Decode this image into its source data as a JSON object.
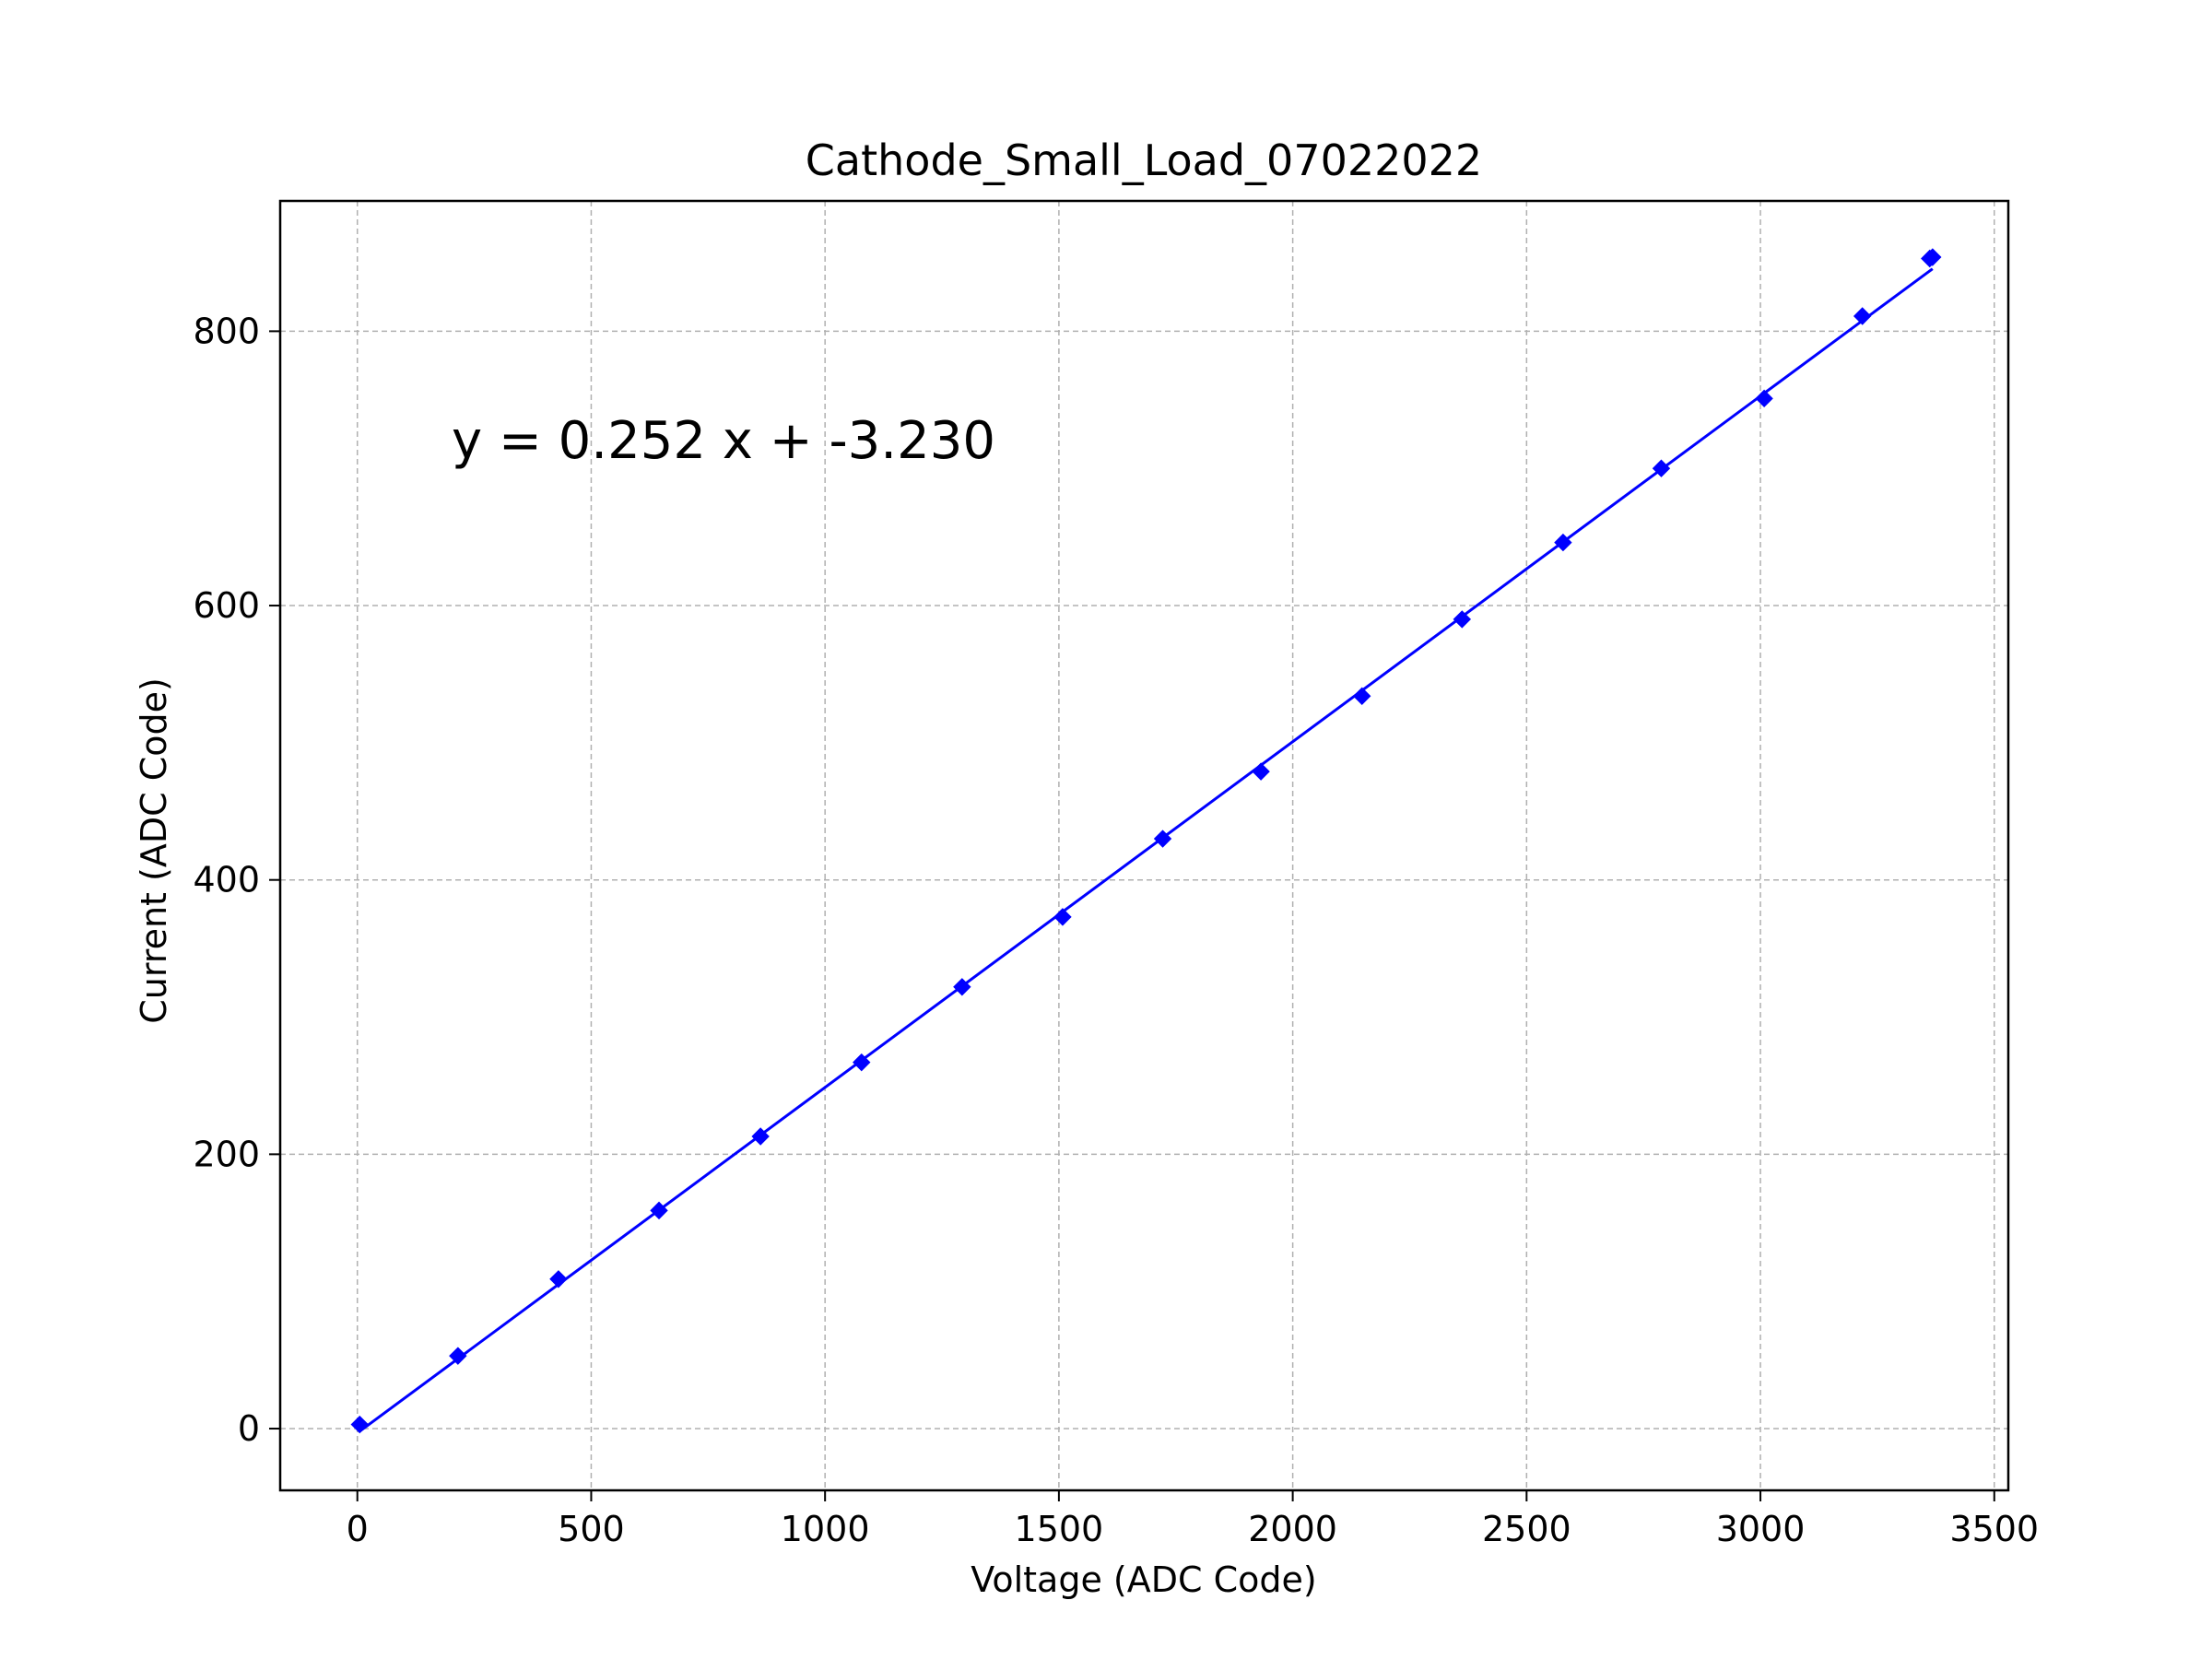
{
  "chart_data": {
    "type": "scatter",
    "title": "Cathode_Small_Load_07022022",
    "xlabel": "Voltage (ADC Code)",
    "ylabel": "Current (ADC Code)",
    "annotation": "y = 0.252 x + -3.230",
    "xlim": [
      -165,
      3530
    ],
    "ylim": [
      -45,
      895
    ],
    "x_ticks": [
      0,
      500,
      1000,
      1500,
      2000,
      2500,
      3000,
      3500
    ],
    "y_ticks": [
      0,
      200,
      400,
      600,
      800
    ],
    "x_tick_labels": [
      "0",
      "500",
      "1000",
      "1500",
      "2000",
      "2500",
      "3000",
      "3500"
    ],
    "y_tick_labels": [
      "0",
      "200",
      "400",
      "600",
      "800"
    ],
    "grid": true,
    "colors": {
      "series": "#0000ff",
      "grid": "#b0b0b0"
    },
    "series": [
      {
        "marker": "diamond",
        "x": [
          5,
          215,
          430,
          645,
          862,
          1078,
          1293,
          1508,
          1722,
          1932,
          2148,
          2362,
          2578,
          2788,
          3008,
          3218,
          3362,
          3368
        ],
        "y": [
          3,
          53,
          109,
          159,
          213,
          267,
          322,
          373,
          430,
          479,
          534,
          590,
          646,
          700,
          751,
          811,
          853,
          854
        ]
      }
    ],
    "fit_line": {
      "slope": 0.252,
      "intercept": -3.23,
      "x_range": [
        5,
        3368
      ]
    }
  }
}
